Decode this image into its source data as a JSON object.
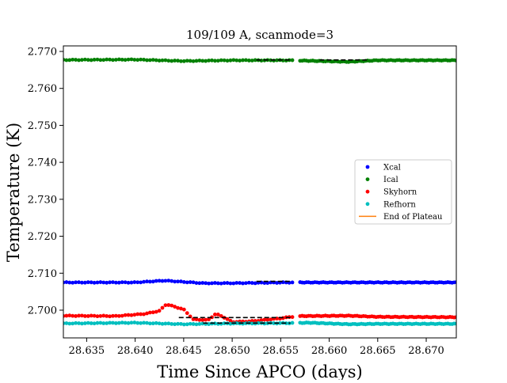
{
  "chart_data": {
    "type": "scatter",
    "title": "109/109 A, scanmode=3",
    "xlabel": "Time Since APCO (days)",
    "ylabel": "Temperature (K)",
    "xlim": [
      28.6326,
      28.6731
    ],
    "ylim": [
      2.6925,
      2.7715
    ],
    "xticks": [
      "28.635",
      "28.640",
      "28.645",
      "28.650",
      "28.655",
      "28.660",
      "28.665",
      "28.670"
    ],
    "xtick_values": [
      28.635,
      28.64,
      28.645,
      28.65,
      28.655,
      28.66,
      28.665,
      28.67
    ],
    "yticks": [
      "2.700",
      "2.710",
      "2.720",
      "2.730",
      "2.740",
      "2.750",
      "2.760",
      "2.770"
    ],
    "ytick_values": [
      2.7,
      2.71,
      2.72,
      2.73,
      2.74,
      2.75,
      2.76,
      2.77
    ],
    "grid": false,
    "legend_position": "center-right",
    "gap": [
      28.6562,
      28.657
    ],
    "series": [
      {
        "name": "Xcal",
        "color": "#0000ff",
        "anchors": [
          [
            28.6326,
            2.7075
          ],
          [
            28.64,
            2.7075
          ],
          [
            28.643,
            2.708
          ],
          [
            28.647,
            2.7073
          ],
          [
            28.65,
            2.7073
          ],
          [
            28.656,
            2.7075
          ],
          [
            28.662,
            2.7075
          ],
          [
            28.6731,
            2.7075
          ]
        ]
      },
      {
        "name": "Ical",
        "color": "#008000",
        "anchors": [
          [
            28.6326,
            2.7677
          ],
          [
            28.64,
            2.7678
          ],
          [
            28.645,
            2.7674
          ],
          [
            28.65,
            2.7676
          ],
          [
            28.656,
            2.7676
          ],
          [
            28.662,
            2.7672
          ],
          [
            28.665,
            2.7676
          ],
          [
            28.6731,
            2.7676
          ]
        ]
      },
      {
        "name": "Skyhorn",
        "color": "#ff0000",
        "anchors": [
          [
            28.6326,
            2.6985
          ],
          [
            28.638,
            2.6984
          ],
          [
            28.641,
            2.699
          ],
          [
            28.6425,
            2.6998
          ],
          [
            28.6432,
            2.7016
          ],
          [
            28.644,
            2.701
          ],
          [
            28.645,
            2.7002
          ],
          [
            28.646,
            2.6975
          ],
          [
            28.6475,
            2.6973
          ],
          [
            28.6483,
            2.699
          ],
          [
            28.649,
            2.6983
          ],
          [
            28.65,
            2.6968
          ],
          [
            28.652,
            2.697
          ],
          [
            28.655,
            2.6978
          ],
          [
            28.6561,
            2.6982
          ],
          [
            28.6571,
            2.6984
          ],
          [
            28.662,
            2.6985
          ],
          [
            28.665,
            2.6982
          ],
          [
            28.6731,
            2.6981
          ]
        ]
      },
      {
        "name": "Refhorn",
        "color": "#00bfbf",
        "anchors": [
          [
            28.6326,
            2.6964
          ],
          [
            28.64,
            2.6966
          ],
          [
            28.645,
            2.6962
          ],
          [
            28.65,
            2.6964
          ],
          [
            28.656,
            2.6965
          ],
          [
            28.658,
            2.6966
          ],
          [
            28.662,
            2.6962
          ],
          [
            28.665,
            2.6963
          ],
          [
            28.6731,
            2.6963
          ]
        ]
      }
    ],
    "end_of_plateau": {
      "name": "End of Plateau",
      "color": "#ff7f0e"
    },
    "plateau_lines": [
      {
        "color": "#000000",
        "x": [
          28.6445,
          28.656
        ],
        "y": 2.698
      },
      {
        "color": "#000000",
        "x": [
          28.647,
          28.656
        ],
        "y": 2.6965
      },
      {
        "color": "#000000",
        "x": [
          28.6525,
          28.656
        ],
        "y": 2.7078
      },
      {
        "color": "#000000",
        "x": [
          28.6525,
          28.656
        ],
        "y": 2.7677
      },
      {
        "color": "#000000",
        "x": [
          28.659,
          28.664
        ],
        "y": 2.7677
      }
    ],
    "markers_per_segment": 75
  }
}
